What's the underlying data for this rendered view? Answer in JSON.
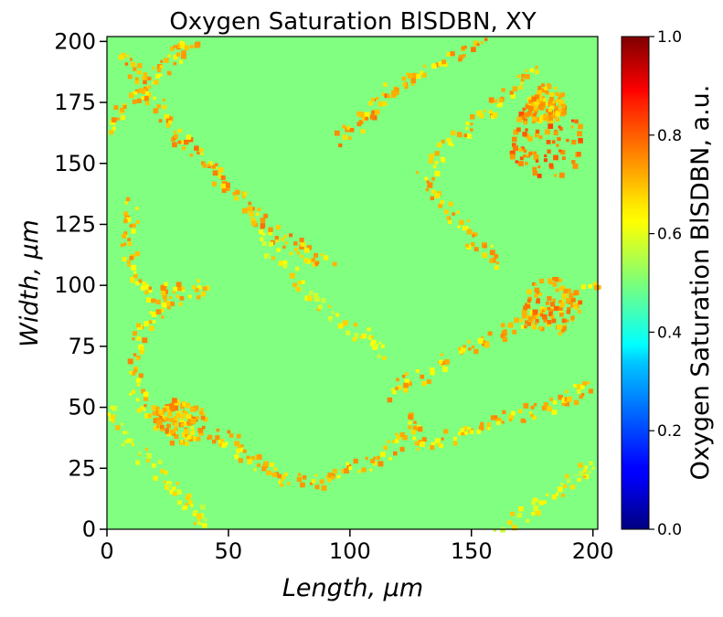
{
  "chart_data": {
    "type": "heatmap",
    "title": "Oxygen Saturation BlSDBN, XY",
    "xlabel": "Length, μm",
    "ylabel": "Width, μm",
    "xlim": [
      0,
      202
    ],
    "ylim": [
      0,
      202
    ],
    "x_ticks": [
      "0",
      "50",
      "100",
      "150",
      "200"
    ],
    "y_ticks": [
      "0",
      "25",
      "50",
      "75",
      "100",
      "125",
      "150",
      "175",
      "200"
    ],
    "x_tick_values": [
      0,
      50,
      100,
      150,
      200
    ],
    "y_tick_values": [
      0,
      25,
      50,
      75,
      100,
      125,
      150,
      175,
      200
    ],
    "colorbar": {
      "label": "Oxygen Saturation BlSDBN, a.u.",
      "range": [
        0,
        1
      ],
      "ticks": [
        "0.0",
        "0.2",
        "0.4",
        "0.6",
        "0.8",
        "1.0"
      ],
      "tick_values": [
        0.0,
        0.2,
        0.4,
        0.6,
        0.8,
        1.0
      ],
      "colormap": "jet"
    },
    "background_value": 0.5,
    "features": [
      {
        "value": 0.68,
        "points": [
          [
            40,
            100
          ],
          [
            25,
            95
          ],
          [
            15,
            85
          ],
          [
            10,
            70
          ],
          [
            12,
            55
          ],
          [
            20,
            45
          ],
          [
            35,
            40
          ],
          [
            50,
            38
          ],
          [
            58,
            30
          ],
          [
            70,
            22
          ],
          [
            85,
            20
          ],
          [
            100,
            25
          ],
          [
            115,
            32
          ],
          [
            125,
            45
          ],
          [
            130,
            35
          ],
          [
            145,
            40
          ],
          [
            160,
            45
          ],
          [
            175,
            50
          ],
          [
            190,
            55
          ],
          [
            200,
            60
          ]
        ]
      },
      {
        "value": 0.68,
        "points": [
          [
            200,
            100
          ],
          [
            185,
            92
          ],
          [
            170,
            85
          ],
          [
            155,
            78
          ],
          [
            140,
            70
          ],
          [
            125,
            62
          ],
          [
            115,
            55
          ]
        ]
      },
      {
        "value": 0.7,
        "points": [
          [
            90,
            110
          ],
          [
            80,
            115
          ],
          [
            70,
            120
          ],
          [
            60,
            130
          ],
          [
            50,
            140
          ],
          [
            40,
            150
          ],
          [
            30,
            160
          ],
          [
            22,
            172
          ],
          [
            12,
            185
          ],
          [
            5,
            195
          ]
        ]
      },
      {
        "value": 0.68,
        "points": [
          [
            0,
            165
          ],
          [
            10,
            178
          ],
          [
            20,
            188
          ],
          [
            28,
            196
          ],
          [
            35,
            202
          ]
        ]
      },
      {
        "value": 0.68,
        "points": [
          [
            10,
            135
          ],
          [
            8,
            120
          ],
          [
            10,
            105
          ],
          [
            18,
            96
          ],
          [
            30,
            100
          ]
        ]
      },
      {
        "value": 0.7,
        "points": [
          [
            95,
            160
          ],
          [
            105,
            170
          ],
          [
            115,
            180
          ],
          [
            125,
            185
          ],
          [
            140,
            195
          ],
          [
            155,
            200
          ]
        ]
      },
      {
        "value": 0.68,
        "points": [
          [
            160,
            110
          ],
          [
            150,
            120
          ],
          [
            140,
            130
          ],
          [
            130,
            145
          ],
          [
            140,
            160
          ],
          [
            155,
            170
          ],
          [
            165,
            180
          ],
          [
            175,
            190
          ]
        ]
      },
      {
        "value": 0.62,
        "points": [
          [
            0,
            50
          ],
          [
            10,
            35
          ],
          [
            25,
            20
          ],
          [
            35,
            10
          ],
          [
            40,
            2
          ]
        ]
      },
      {
        "value": 0.62,
        "points": [
          [
            160,
            0
          ],
          [
            175,
            10
          ],
          [
            190,
            20
          ],
          [
            200,
            28
          ]
        ]
      },
      {
        "value": 0.62,
        "points": [
          [
            60,
            120
          ],
          [
            75,
            105
          ],
          [
            90,
            90
          ],
          [
            105,
            80
          ],
          [
            115,
            72
          ]
        ]
      }
    ],
    "blobs": [
      {
        "x": 180,
        "y": 160,
        "r": 16,
        "value": 0.75
      },
      {
        "x": 182,
        "y": 92,
        "r": 12,
        "value": 0.72
      },
      {
        "x": 30,
        "y": 45,
        "r": 10,
        "value": 0.7
      },
      {
        "x": 180,
        "y": 175,
        "r": 8,
        "value": 0.7
      }
    ]
  }
}
